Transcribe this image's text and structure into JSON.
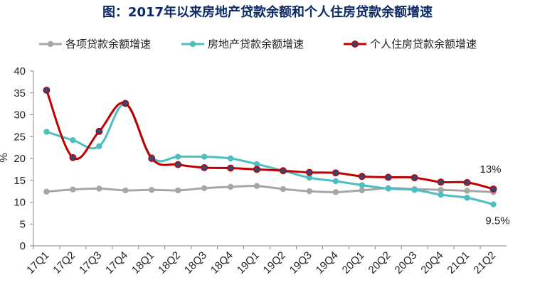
{
  "chart_data": {
    "type": "line",
    "title": "图：2017年以来房地产贷款余额和个人住房贷款余额增速",
    "ylabel": "%",
    "xlabel": "",
    "ylim": [
      0,
      40
    ],
    "yticks": [
      0,
      5,
      10,
      15,
      20,
      25,
      30,
      35,
      40
    ],
    "grid": false,
    "legend_position": "top",
    "categories": [
      "17Q1",
      "17Q2",
      "17Q3",
      "17Q4",
      "18Q1",
      "18Q2",
      "18Q3",
      "18Q4",
      "19Q1",
      "19Q2",
      "19Q3",
      "19Q4",
      "20Q1",
      "20Q2",
      "20Q3",
      "20Q4",
      "21Q1",
      "21Q2"
    ],
    "series": [
      {
        "name": "各项贷款余额增速",
        "color": "#a6a6a6",
        "values": [
          12.4,
          12.9,
          13.1,
          12.7,
          12.8,
          12.7,
          13.2,
          13.5,
          13.7,
          13.0,
          12.5,
          12.3,
          12.7,
          13.2,
          13.0,
          12.8,
          12.6,
          12.3
        ]
      },
      {
        "name": "房地产贷款余额增速",
        "color": "#4dbfc1",
        "values": [
          26.1,
          24.2,
          22.8,
          32.5,
          20.3,
          20.4,
          20.4,
          20.0,
          18.7,
          17.2,
          15.6,
          14.8,
          13.9,
          13.1,
          12.8,
          11.7,
          11.0,
          9.5
        ]
      },
      {
        "name": "个人住房贷款余额增速",
        "color": "#c00000",
        "marker": "#2e4a7a",
        "values": [
          35.6,
          20.2,
          26.2,
          32.6,
          20.0,
          18.6,
          17.9,
          17.8,
          17.5,
          17.2,
          16.8,
          16.7,
          15.9,
          15.7,
          15.6,
          14.6,
          14.5,
          13.0
        ]
      }
    ],
    "annotations": [
      {
        "text": "13%",
        "category": "21Q2",
        "series": "个人住房贷款余额增速"
      },
      {
        "text": "9.5%",
        "category": "21Q2",
        "series": "房地产贷款余额增速"
      }
    ]
  }
}
